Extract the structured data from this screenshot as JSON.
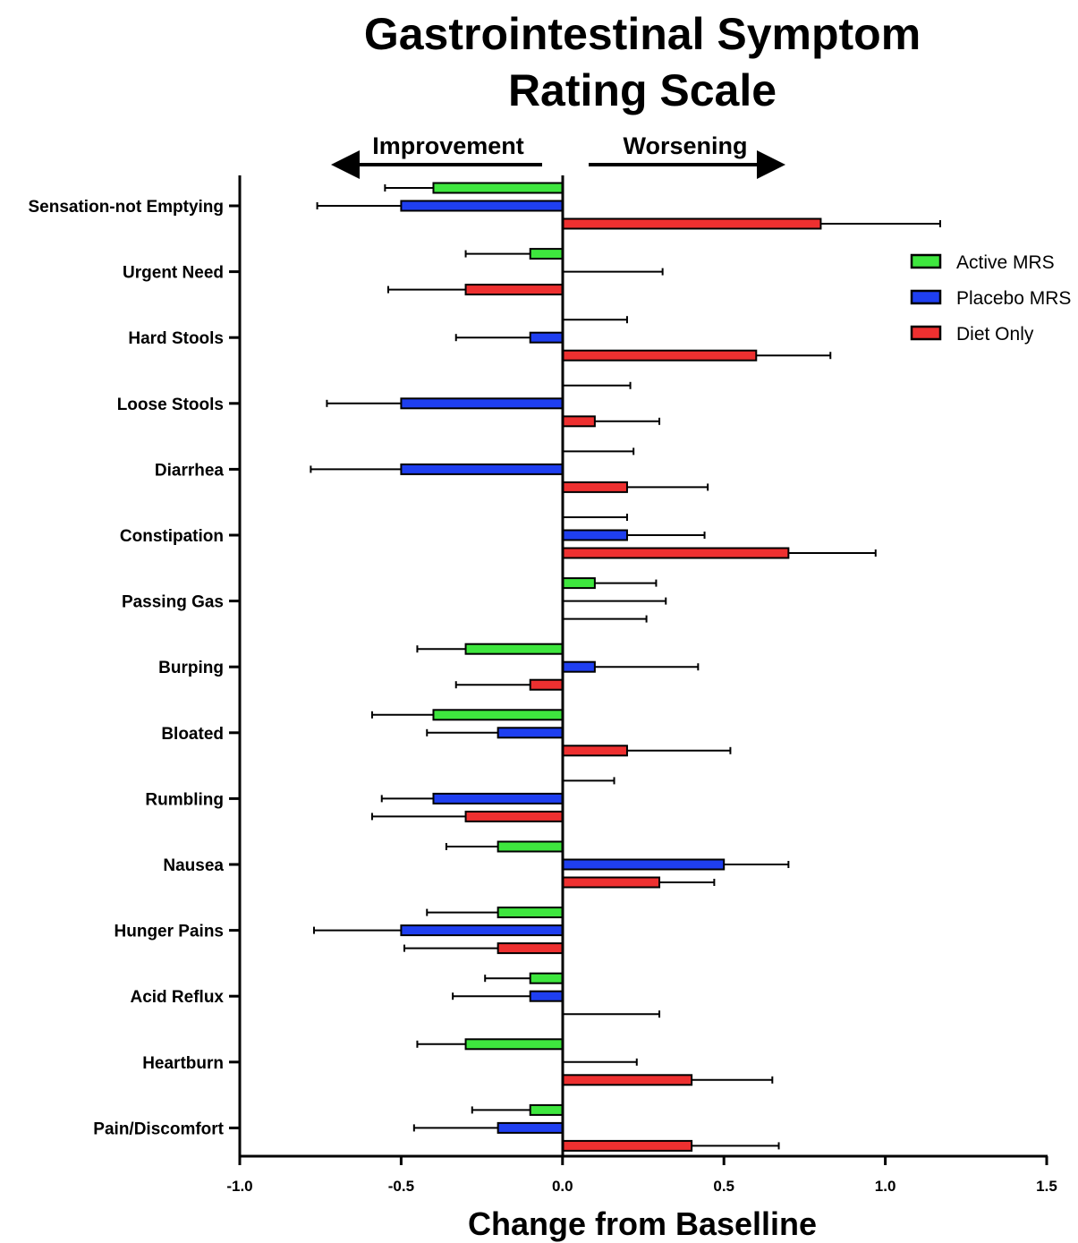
{
  "chart_data": {
    "type": "bar",
    "orientation": "horizontal",
    "title_lines": [
      "Gastrointestinal Symptom",
      "Rating Scale"
    ],
    "xlabel": "Change from Baselline",
    "ylabel": "",
    "xlim": [
      -1.0,
      1.5
    ],
    "xticks": [
      -1.0,
      -0.5,
      0.0,
      0.5,
      1.0,
      1.5
    ],
    "xtick_labels": [
      "-1.0",
      "-0.5",
      "0.0",
      "0.5",
      "1.0",
      "1.5"
    ],
    "direction_labels": {
      "left": "Improvement",
      "right": "Worsening"
    },
    "legend_position": "top-right",
    "grid": false,
    "categories": [
      "Sensation-not Emptying",
      "Urgent Need",
      "Hard Stools",
      "Loose Stools",
      "Diarrhea",
      "Constipation",
      "Passing Gas",
      "Burping",
      "Bloated",
      "Rumbling",
      "Nausea",
      "Hunger Pains",
      "Acid Reflux",
      "Heartburn",
      "Pain/Discomfort"
    ],
    "series": [
      {
        "name": "Active MRS",
        "color": "#3ee63e",
        "values": [
          -0.4,
          -0.1,
          0.0,
          0.0,
          0.0,
          0.0,
          0.1,
          -0.3,
          -0.4,
          0.0,
          -0.2,
          -0.2,
          -0.1,
          -0.3,
          -0.1
        ],
        "error_bounds": [
          -0.55,
          -0.3,
          0.2,
          0.21,
          0.22,
          0.2,
          0.29,
          -0.45,
          -0.59,
          0.16,
          -0.36,
          -0.42,
          -0.24,
          -0.45,
          -0.28
        ]
      },
      {
        "name": "Placebo MRS",
        "color": "#1f3ff0",
        "values": [
          -0.5,
          0.0,
          -0.1,
          -0.5,
          -0.5,
          0.2,
          0.0,
          0.1,
          -0.2,
          -0.4,
          0.5,
          -0.5,
          -0.1,
          0.0,
          -0.2
        ],
        "error_bounds": [
          -0.76,
          0.31,
          -0.33,
          -0.73,
          -0.78,
          0.44,
          0.32,
          0.42,
          -0.42,
          -0.56,
          0.7,
          -0.77,
          -0.34,
          0.23,
          -0.46
        ]
      },
      {
        "name": "Diet Only",
        "color": "#ee3030",
        "values": [
          0.8,
          -0.3,
          0.6,
          0.1,
          0.2,
          0.7,
          0.0,
          -0.1,
          0.2,
          -0.3,
          0.3,
          -0.2,
          0.0,
          0.4,
          0.4
        ],
        "error_bounds": [
          1.17,
          -0.54,
          0.83,
          0.3,
          0.45,
          0.97,
          0.26,
          -0.33,
          0.52,
          -0.59,
          0.47,
          -0.49,
          0.3,
          0.65,
          0.67
        ]
      }
    ]
  }
}
